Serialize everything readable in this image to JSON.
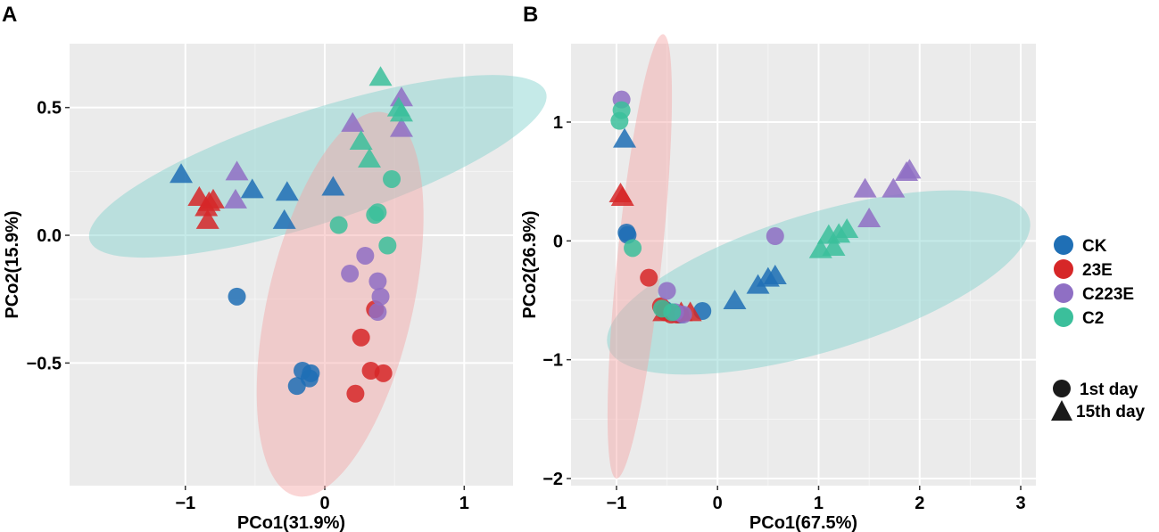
{
  "chart_data": [
    {
      "type": "scatter",
      "panel_label": "A",
      "xlabel": "PCo1(31.9%)",
      "ylabel": "PCo2(15.9%)",
      "xlim": [
        -1.83,
        1.35
      ],
      "ylim": [
        -0.98,
        0.75
      ],
      "xticks": [
        -1,
        0,
        1
      ],
      "xtick_labels": [
        "−1",
        "0",
        "1"
      ],
      "yticks": [
        -0.5,
        0.0,
        0.5
      ],
      "ytick_labels": [
        "−0.5",
        "0.0",
        "0.5"
      ],
      "ellipses": [
        {
          "group": "C2",
          "color": "#7fd0cc",
          "center": [
            -0.05,
            0.27
          ],
          "rx": 1.72,
          "ry": 0.22,
          "angle": 18
        },
        {
          "group": "23E",
          "color": "#f5a3a3",
          "center": [
            0.11,
            -0.27
          ],
          "rx": 0.52,
          "ry": 0.77,
          "angle": -13
        }
      ],
      "series": [
        {
          "name": "CK",
          "color": "#1f6fb5",
          "points": [
            {
              "x": -0.63,
              "y": -0.24,
              "shape": "circle"
            },
            {
              "x": -0.16,
              "y": -0.53,
              "shape": "circle"
            },
            {
              "x": -0.1,
              "y": -0.54,
              "shape": "circle"
            },
            {
              "x": -0.11,
              "y": -0.56,
              "shape": "circle"
            },
            {
              "x": -0.2,
              "y": -0.59,
              "shape": "circle"
            },
            {
              "x": -1.03,
              "y": 0.24,
              "shape": "triangle"
            },
            {
              "x": -0.52,
              "y": 0.18,
              "shape": "triangle"
            },
            {
              "x": -0.27,
              "y": 0.17,
              "shape": "triangle"
            },
            {
              "x": -0.29,
              "y": 0.06,
              "shape": "triangle"
            },
            {
              "x": 0.06,
              "y": 0.19,
              "shape": "triangle"
            }
          ]
        },
        {
          "name": "23E",
          "color": "#d62728",
          "points": [
            {
              "x": 0.36,
              "y": -0.29,
              "shape": "circle"
            },
            {
              "x": 0.26,
              "y": -0.4,
              "shape": "circle"
            },
            {
              "x": 0.33,
              "y": -0.53,
              "shape": "circle"
            },
            {
              "x": 0.42,
              "y": -0.54,
              "shape": "circle"
            },
            {
              "x": 0.22,
              "y": -0.62,
              "shape": "circle"
            },
            {
              "x": -0.9,
              "y": 0.15,
              "shape": "triangle"
            },
            {
              "x": -0.83,
              "y": 0.13,
              "shape": "triangle"
            },
            {
              "x": -0.8,
              "y": 0.14,
              "shape": "triangle"
            },
            {
              "x": -0.85,
              "y": 0.11,
              "shape": "triangle"
            },
            {
              "x": -0.84,
              "y": 0.06,
              "shape": "triangle"
            }
          ]
        },
        {
          "name": "C223E",
          "color": "#8f6fc4",
          "points": [
            {
              "x": 0.29,
              "y": -0.08,
              "shape": "circle"
            },
            {
              "x": 0.18,
              "y": -0.15,
              "shape": "circle"
            },
            {
              "x": 0.38,
              "y": -0.18,
              "shape": "circle"
            },
            {
              "x": 0.4,
              "y": -0.24,
              "shape": "circle"
            },
            {
              "x": 0.38,
              "y": -0.3,
              "shape": "circle"
            },
            {
              "x": -0.63,
              "y": 0.25,
              "shape": "triangle"
            },
            {
              "x": -0.64,
              "y": 0.14,
              "shape": "triangle"
            },
            {
              "x": 0.2,
              "y": 0.44,
              "shape": "triangle"
            },
            {
              "x": 0.55,
              "y": 0.54,
              "shape": "triangle"
            },
            {
              "x": 0.55,
              "y": 0.42,
              "shape": "triangle"
            }
          ]
        },
        {
          "name": "C2",
          "color": "#3bbf9b",
          "points": [
            {
              "x": 0.48,
              "y": 0.22,
              "shape": "circle"
            },
            {
              "x": 0.1,
              "y": 0.04,
              "shape": "circle"
            },
            {
              "x": 0.36,
              "y": 0.08,
              "shape": "circle"
            },
            {
              "x": 0.38,
              "y": 0.09,
              "shape": "circle"
            },
            {
              "x": 0.45,
              "y": -0.04,
              "shape": "circle"
            },
            {
              "x": 0.4,
              "y": 0.62,
              "shape": "triangle"
            },
            {
              "x": 0.53,
              "y": 0.5,
              "shape": "triangle"
            },
            {
              "x": 0.55,
              "y": 0.48,
              "shape": "triangle"
            },
            {
              "x": 0.26,
              "y": 0.37,
              "shape": "triangle"
            },
            {
              "x": 0.32,
              "y": 0.3,
              "shape": "triangle"
            }
          ]
        }
      ]
    },
    {
      "type": "scatter",
      "panel_label": "B",
      "xlabel": "PCo1(67.5%)",
      "ylabel": "PCo2(26.9%)",
      "xlim": [
        -1.45,
        3.15
      ],
      "ylim": [
        -2.06,
        1.66
      ],
      "xticks": [
        -1,
        0,
        1,
        2,
        3
      ],
      "xtick_labels": [
        "−1",
        "0",
        "1",
        "2",
        "3"
      ],
      "yticks": [
        -2,
        -1,
        0,
        1
      ],
      "ytick_labels": [
        "−2",
        "−1",
        "0",
        "1"
      ],
      "ellipses": [
        {
          "group": "C2",
          "color": "#7fd0cc",
          "center": [
            1.0,
            -0.35
          ],
          "rx": 2.18,
          "ry": 0.58,
          "angle": 17
        },
        {
          "group": "23E",
          "color": "#f5a3a3",
          "center": [
            -0.77,
            -0.13
          ],
          "rx": 0.22,
          "ry": 1.88,
          "angle": -6
        }
      ],
      "series": [
        {
          "name": "CK",
          "color": "#1f6fb5",
          "points": [
            {
              "x": -0.9,
              "y": 0.07,
              "shape": "circle"
            },
            {
              "x": -0.89,
              "y": 0.05,
              "shape": "circle"
            },
            {
              "x": -0.15,
              "y": -0.59,
              "shape": "circle"
            },
            {
              "x": -0.37,
              "y": -0.62,
              "shape": "circle"
            },
            {
              "x": -0.52,
              "y": -0.58,
              "shape": "circle"
            },
            {
              "x": -0.92,
              "y": 0.86,
              "shape": "triangle"
            },
            {
              "x": 0.17,
              "y": -0.5,
              "shape": "triangle"
            },
            {
              "x": 0.4,
              "y": -0.37,
              "shape": "triangle"
            },
            {
              "x": 0.5,
              "y": -0.31,
              "shape": "triangle"
            },
            {
              "x": 0.57,
              "y": -0.29,
              "shape": "triangle"
            }
          ]
        },
        {
          "name": "23E",
          "color": "#d62728",
          "points": [
            {
              "x": -0.68,
              "y": -0.31,
              "shape": "circle"
            },
            {
              "x": -0.56,
              "y": -0.55,
              "shape": "circle"
            },
            {
              "x": -0.52,
              "y": -0.6,
              "shape": "circle"
            },
            {
              "x": -0.46,
              "y": -0.62,
              "shape": "circle"
            },
            {
              "x": -0.4,
              "y": -0.62,
              "shape": "circle"
            },
            {
              "x": -0.96,
              "y": 0.4,
              "shape": "triangle"
            },
            {
              "x": -0.94,
              "y": 0.37,
              "shape": "triangle"
            },
            {
              "x": -0.53,
              "y": -0.6,
              "shape": "triangle"
            },
            {
              "x": -0.36,
              "y": -0.6,
              "shape": "triangle"
            },
            {
              "x": -0.27,
              "y": -0.6,
              "shape": "triangle"
            }
          ]
        },
        {
          "name": "C223E",
          "color": "#8f6fc4",
          "points": [
            {
              "x": -0.95,
              "y": 1.19,
              "shape": "circle"
            },
            {
              "x": 0.57,
              "y": 0.04,
              "shape": "circle"
            },
            {
              "x": -0.5,
              "y": -0.42,
              "shape": "circle"
            },
            {
              "x": -0.42,
              "y": -0.6,
              "shape": "circle"
            },
            {
              "x": -0.34,
              "y": -0.62,
              "shape": "circle"
            },
            {
              "x": 1.46,
              "y": 0.44,
              "shape": "triangle"
            },
            {
              "x": 1.74,
              "y": 0.44,
              "shape": "triangle"
            },
            {
              "x": 1.87,
              "y": 0.58,
              "shape": "triangle"
            },
            {
              "x": 1.9,
              "y": 0.6,
              "shape": "triangle"
            },
            {
              "x": 1.5,
              "y": 0.19,
              "shape": "triangle"
            }
          ]
        },
        {
          "name": "C2",
          "color": "#3bbf9b",
          "points": [
            {
              "x": -0.97,
              "y": 1.01,
              "shape": "circle"
            },
            {
              "x": -0.95,
              "y": 1.1,
              "shape": "circle"
            },
            {
              "x": -0.84,
              "y": -0.06,
              "shape": "circle"
            },
            {
              "x": -0.55,
              "y": -0.57,
              "shape": "circle"
            },
            {
              "x": -0.45,
              "y": -0.6,
              "shape": "circle"
            },
            {
              "x": 1.02,
              "y": -0.07,
              "shape": "triangle"
            },
            {
              "x": 1.1,
              "y": 0.05,
              "shape": "triangle"
            },
            {
              "x": 1.2,
              "y": 0.06,
              "shape": "triangle"
            },
            {
              "x": 1.28,
              "y": 0.1,
              "shape": "triangle"
            },
            {
              "x": 1.15,
              "y": -0.05,
              "shape": "triangle"
            }
          ]
        }
      ]
    }
  ],
  "legend": {
    "groups": [
      {
        "label": "CK",
        "color": "#1f6fb5"
      },
      {
        "label": "23E",
        "color": "#d62728"
      },
      {
        "label": "C223E",
        "color": "#8f6fc4"
      },
      {
        "label": "C2",
        "color": "#3bbf9b"
      }
    ],
    "shapes": [
      {
        "label": "1st day",
        "shape": "circle"
      },
      {
        "label": "15th day",
        "shape": "triangle"
      }
    ]
  }
}
